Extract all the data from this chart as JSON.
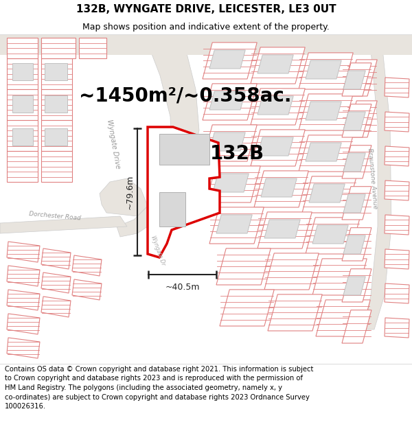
{
  "title": "132B, WYNGATE DRIVE, LEICESTER, LE3 0UT",
  "subtitle": "Map shows position and indicative extent of the property.",
  "area_text": "~1450m²/~0.358ac.",
  "label_132b": "132B",
  "dim_width": "~40.5m",
  "dim_height": "~79.6m",
  "footer": "Contains OS data © Crown copyright and database right 2021. This information is subject\nto Crown copyright and database rights 2023 and is reproduced with the permission of\nHM Land Registry. The polygons (including the associated geometry, namely x, y\nco-ordinates) are subject to Crown copyright and database rights 2023 Ordnance Survey\n100026316.",
  "bg_white": "#ffffff",
  "road_color": "#e0dbd5",
  "road_edge": "#bbbbbb",
  "plot_line": "#e08080",
  "plot_fill": "#ffffff",
  "bldg_fill": "#e0e0e0",
  "bldg_edge": "#c0c0c0",
  "outline_color": "#dd0000",
  "dim_color": "#222222",
  "label_color": "#888888",
  "title_fontsize": 11,
  "subtitle_fontsize": 9,
  "area_fontsize": 20,
  "label_fontsize": 20,
  "footer_fontsize": 7.2,
  "street_label_color": "#999999",
  "wyngate_drive_label": "Wyngate Drive",
  "braunstone_label": "Braunstone Avenue",
  "dorchester_label": "Dorchester Road"
}
